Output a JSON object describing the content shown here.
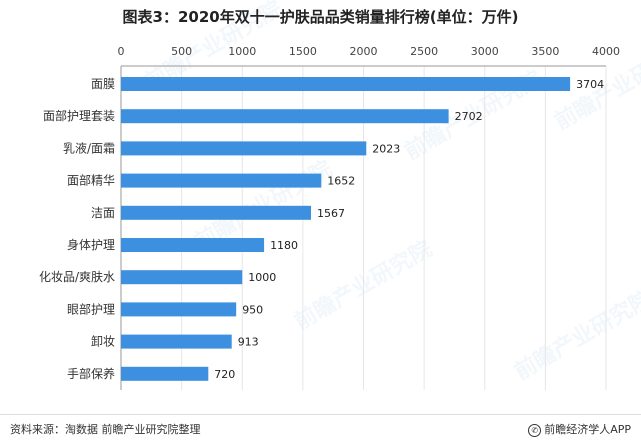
{
  "chart_data": {
    "type": "bar",
    "orientation": "horizontal",
    "title": "图表3：2020年双十一护肤品品类销量排行榜(单位：万件)",
    "categories": [
      "面膜",
      "面部护理套装",
      "乳液/面霜",
      "面部精华",
      "洁面",
      "身体护理",
      "化妆品/爽肤水",
      "眼部护理",
      "卸妆",
      "手部保养"
    ],
    "values": [
      3704,
      2702,
      2023,
      1652,
      1567,
      1180,
      1000,
      950,
      913,
      720
    ],
    "xticks": [
      0,
      500,
      1000,
      1500,
      2000,
      2500,
      3000,
      3500,
      4000
    ],
    "xlim": [
      0,
      4000
    ],
    "axis_position": "top",
    "grid": true,
    "legend": "none",
    "bar_color": "#3d8fe0"
  },
  "footer": {
    "source": "资料来源：淘数据 前瞻产业研究院整理",
    "brand": "前瞻经济学人APP",
    "brand_icon": "brand-logo-icon"
  },
  "watermark": {
    "text": "前瞻产业研究院"
  }
}
